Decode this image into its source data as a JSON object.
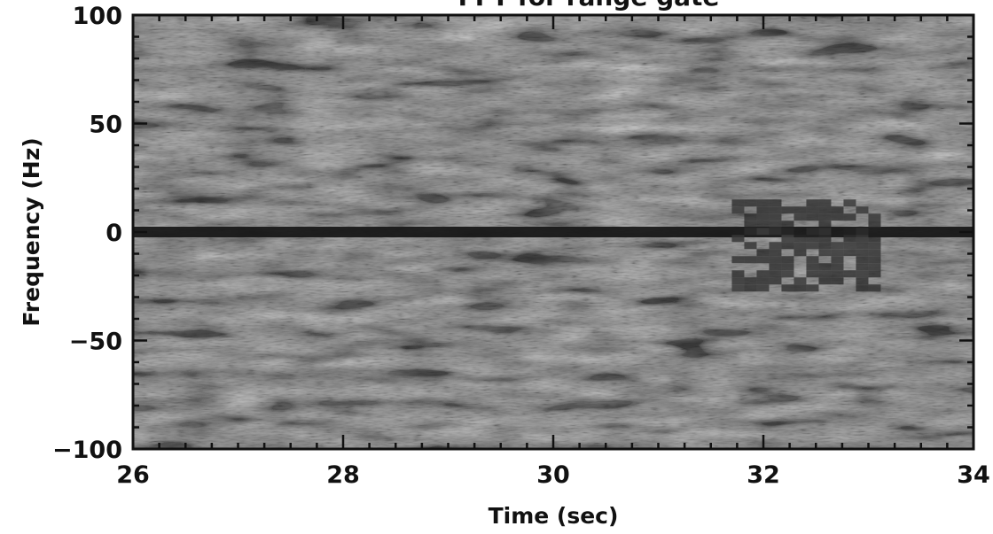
{
  "chart_data": {
    "type": "heatmap",
    "title": "FFT for range gate",
    "xlabel": "Time (sec)",
    "ylabel": "Frequency (Hz)",
    "xlim": [
      26,
      34
    ],
    "ylim": [
      -100,
      100
    ],
    "xticks": [
      26,
      28,
      30,
      32,
      34
    ],
    "xtick_labels": [
      "26",
      "28",
      "30",
      "32",
      "34"
    ],
    "yticks": [
      -100,
      -50,
      0,
      50,
      100
    ],
    "ytick_labels": [
      "-100",
      "-50",
      "0",
      "50",
      "100"
    ],
    "colormap": "grayscale",
    "features": [
      {
        "kind": "horizontal-band",
        "frequency": 0,
        "t_start": 26,
        "t_end": 34,
        "intensity": "high"
      },
      {
        "kind": "burst",
        "t_start": 31.7,
        "t_end": 33.0,
        "f_low": -25,
        "f_high": 15,
        "intensity": "high"
      }
    ]
  }
}
